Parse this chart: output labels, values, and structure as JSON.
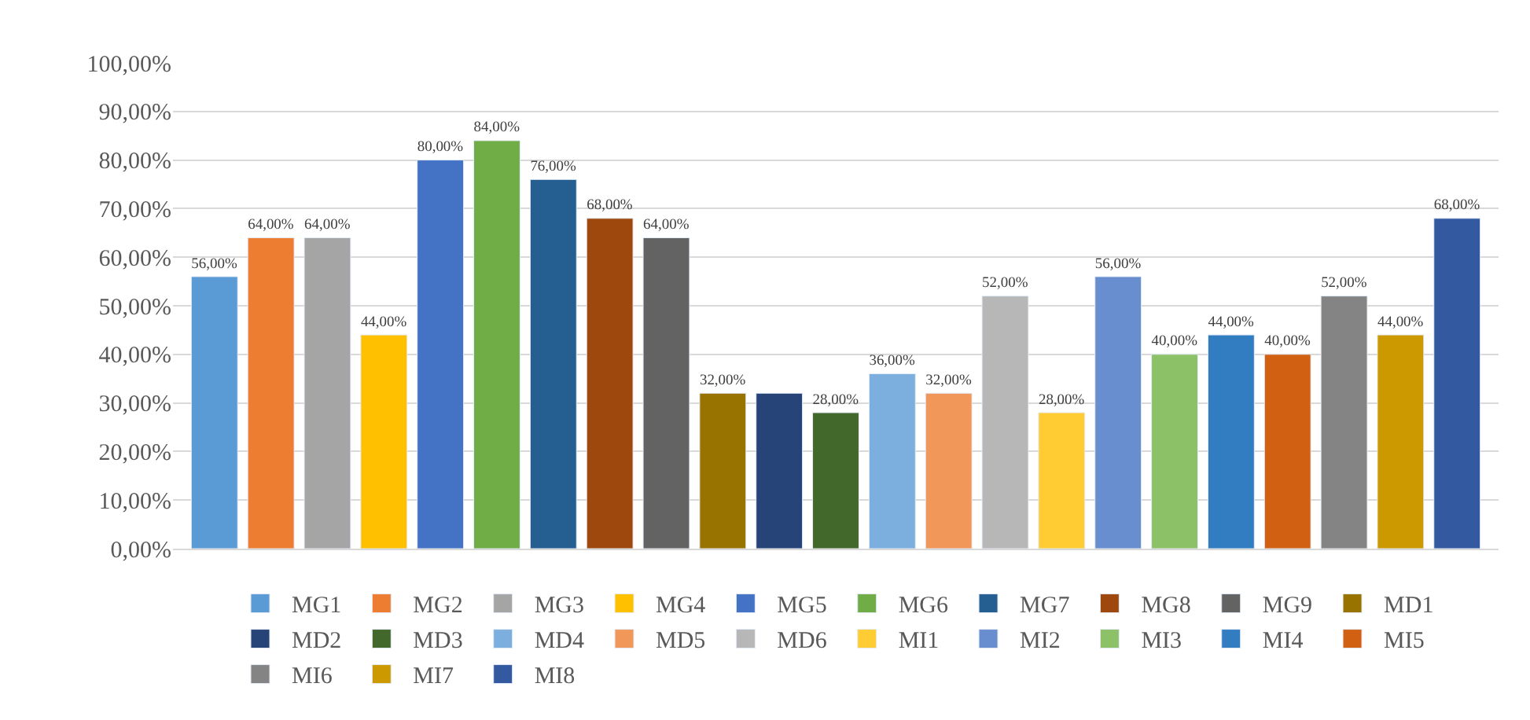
{
  "chart_data": {
    "type": "bar",
    "categories": [
      null
    ],
    "series": [
      {
        "name": "MG1",
        "color": "#5b9bd5",
        "values": [
          56
        ],
        "value_labels": [
          "56,00%"
        ]
      },
      {
        "name": "MG2",
        "color": "#ed7d31",
        "values": [
          64
        ],
        "value_labels": [
          "64,00%"
        ]
      },
      {
        "name": "MG3",
        "color": "#a5a5a5",
        "values": [
          64
        ],
        "value_labels": [
          "64,00%"
        ]
      },
      {
        "name": "MG4",
        "color": "#ffc000",
        "values": [
          44
        ],
        "value_labels": [
          "44,00%"
        ]
      },
      {
        "name": "MG5",
        "color": "#4472c4",
        "values": [
          80
        ],
        "value_labels": [
          "80,00%"
        ]
      },
      {
        "name": "MG6",
        "color": "#70ad47",
        "values": [
          84
        ],
        "value_labels": [
          "84,00%"
        ]
      },
      {
        "name": "MG7",
        "color": "#255e91",
        "values": [
          76
        ],
        "value_labels": [
          "76,00%"
        ]
      },
      {
        "name": "MG8",
        "color": "#9e480e",
        "values": [
          68
        ],
        "value_labels": [
          "68,00%"
        ]
      },
      {
        "name": "MG9",
        "color": "#636363",
        "values": [
          64
        ],
        "value_labels": [
          "64,00%"
        ]
      },
      {
        "name": "MD1",
        "color": "#997300",
        "values": [
          32
        ],
        "value_labels": [
          "32,00%"
        ]
      },
      {
        "name": "MD2",
        "color": "#264478",
        "values": [
          32
        ],
        "value_labels": [
          null
        ]
      },
      {
        "name": "MD3",
        "color": "#43682b",
        "values": [
          28
        ],
        "value_labels": [
          "28,00%"
        ]
      },
      {
        "name": "MD4",
        "color": "#7cafdd",
        "values": [
          36
        ],
        "value_labels": [
          "36,00%"
        ]
      },
      {
        "name": "MD5",
        "color": "#f1975a",
        "values": [
          32
        ],
        "value_labels": [
          "32,00%"
        ]
      },
      {
        "name": "MD6",
        "color": "#b7b7b7",
        "values": [
          52
        ],
        "value_labels": [
          "52,00%"
        ]
      },
      {
        "name": "MI1",
        "color": "#ffcd33",
        "values": [
          28
        ],
        "value_labels": [
          "28,00%"
        ]
      },
      {
        "name": "MI2",
        "color": "#698ed0",
        "values": [
          56
        ],
        "value_labels": [
          "56,00%"
        ]
      },
      {
        "name": "MI3",
        "color": "#8cc168",
        "values": [
          40
        ],
        "value_labels": [
          "40,00%"
        ]
      },
      {
        "name": "MI4",
        "color": "#327dc2",
        "values": [
          44
        ],
        "value_labels": [
          "44,00%"
        ]
      },
      {
        "name": "MI5",
        "color": "#d26012",
        "values": [
          40
        ],
        "value_labels": [
          "40,00%"
        ]
      },
      {
        "name": "MI6",
        "color": "#848484",
        "values": [
          52
        ],
        "value_labels": [
          "52,00%"
        ]
      },
      {
        "name": "MI7",
        "color": "#cc9a00",
        "values": [
          44
        ],
        "value_labels": [
          "44,00%"
        ]
      },
      {
        "name": "MI8",
        "color": "#335aa1",
        "values": [
          68
        ],
        "value_labels": [
          "68,00%"
        ]
      }
    ],
    "ylim": [
      0,
      100
    ],
    "yticks": [
      {
        "value": 0,
        "label": "0,00%"
      },
      {
        "value": 10,
        "label": "10,00%"
      },
      {
        "value": 20,
        "label": "20,00%"
      },
      {
        "value": 30,
        "label": "30,00%"
      },
      {
        "value": 40,
        "label": "40,00%"
      },
      {
        "value": 50,
        "label": "50,00%"
      },
      {
        "value": 60,
        "label": "60,00%"
      },
      {
        "value": 70,
        "label": "70,00%"
      },
      {
        "value": 80,
        "label": "80,00%"
      },
      {
        "value": 90,
        "label": "90,00%"
      },
      {
        "value": 100,
        "label": "100,00%"
      }
    ],
    "grid": "y",
    "legend": "bottom"
  }
}
